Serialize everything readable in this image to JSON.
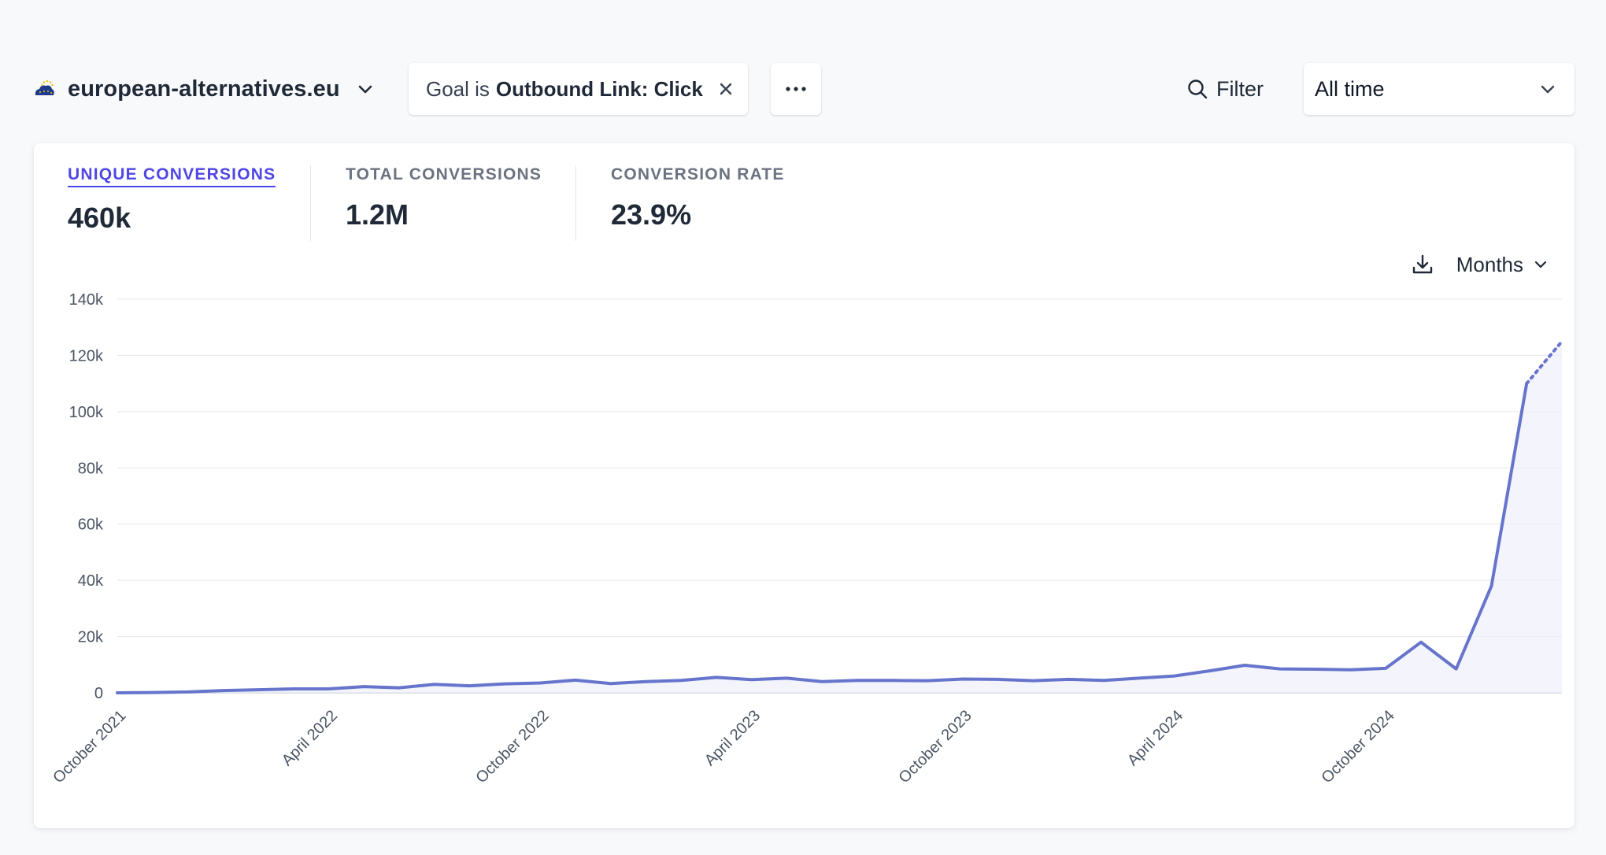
{
  "header": {
    "site_name": "european-alternatives.eu",
    "filter_chip": {
      "prefix": "Goal is",
      "value": "Outbound Link: Click"
    },
    "filter_label": "Filter",
    "period_label": "All time"
  },
  "metrics": [
    {
      "label": "UNIQUE CONVERSIONS",
      "value": "460k",
      "active": true
    },
    {
      "label": "TOTAL CONVERSIONS",
      "value": "1.2M",
      "active": false
    },
    {
      "label": "CONVERSION RATE",
      "value": "23.9%",
      "active": false
    }
  ],
  "chart_controls": {
    "interval_label": "Months"
  },
  "colors": {
    "accent": "#4f46e5",
    "line": "#6674cc",
    "area": "#eef0fb"
  },
  "icons": [
    "site-logo-icon",
    "chevron-down-icon",
    "close-icon",
    "more-icon",
    "search-icon",
    "download-icon"
  ],
  "chart_data": {
    "type": "line",
    "y_ticks": [
      "0",
      "20k",
      "40k",
      "60k",
      "80k",
      "100k",
      "120k",
      "140k"
    ],
    "ylim": [
      0,
      140000
    ],
    "x_tick_labels": [
      {
        "index": 0,
        "label": "October 2021"
      },
      {
        "index": 6,
        "label": "April 2022"
      },
      {
        "index": 12,
        "label": "October 2022"
      },
      {
        "index": 18,
        "label": "April 2023"
      },
      {
        "index": 24,
        "label": "October 2023"
      },
      {
        "index": 30,
        "label": "April 2024"
      },
      {
        "index": 36,
        "label": "October 2024"
      }
    ],
    "values": [
      0,
      100,
      300,
      800,
      1100,
      1400,
      1400,
      2200,
      1800,
      3000,
      2500,
      3200,
      3500,
      4500,
      3300,
      4000,
      4400,
      5500,
      4700,
      5200,
      4000,
      4400,
      4400,
      4300,
      4900,
      4800,
      4300,
      4800,
      4400,
      5200,
      6000,
      7800,
      9800,
      8500,
      8400,
      8200,
      8700,
      18000,
      8500,
      38000,
      110000,
      125000
    ],
    "incomplete_last_point": true,
    "grid": true
  }
}
